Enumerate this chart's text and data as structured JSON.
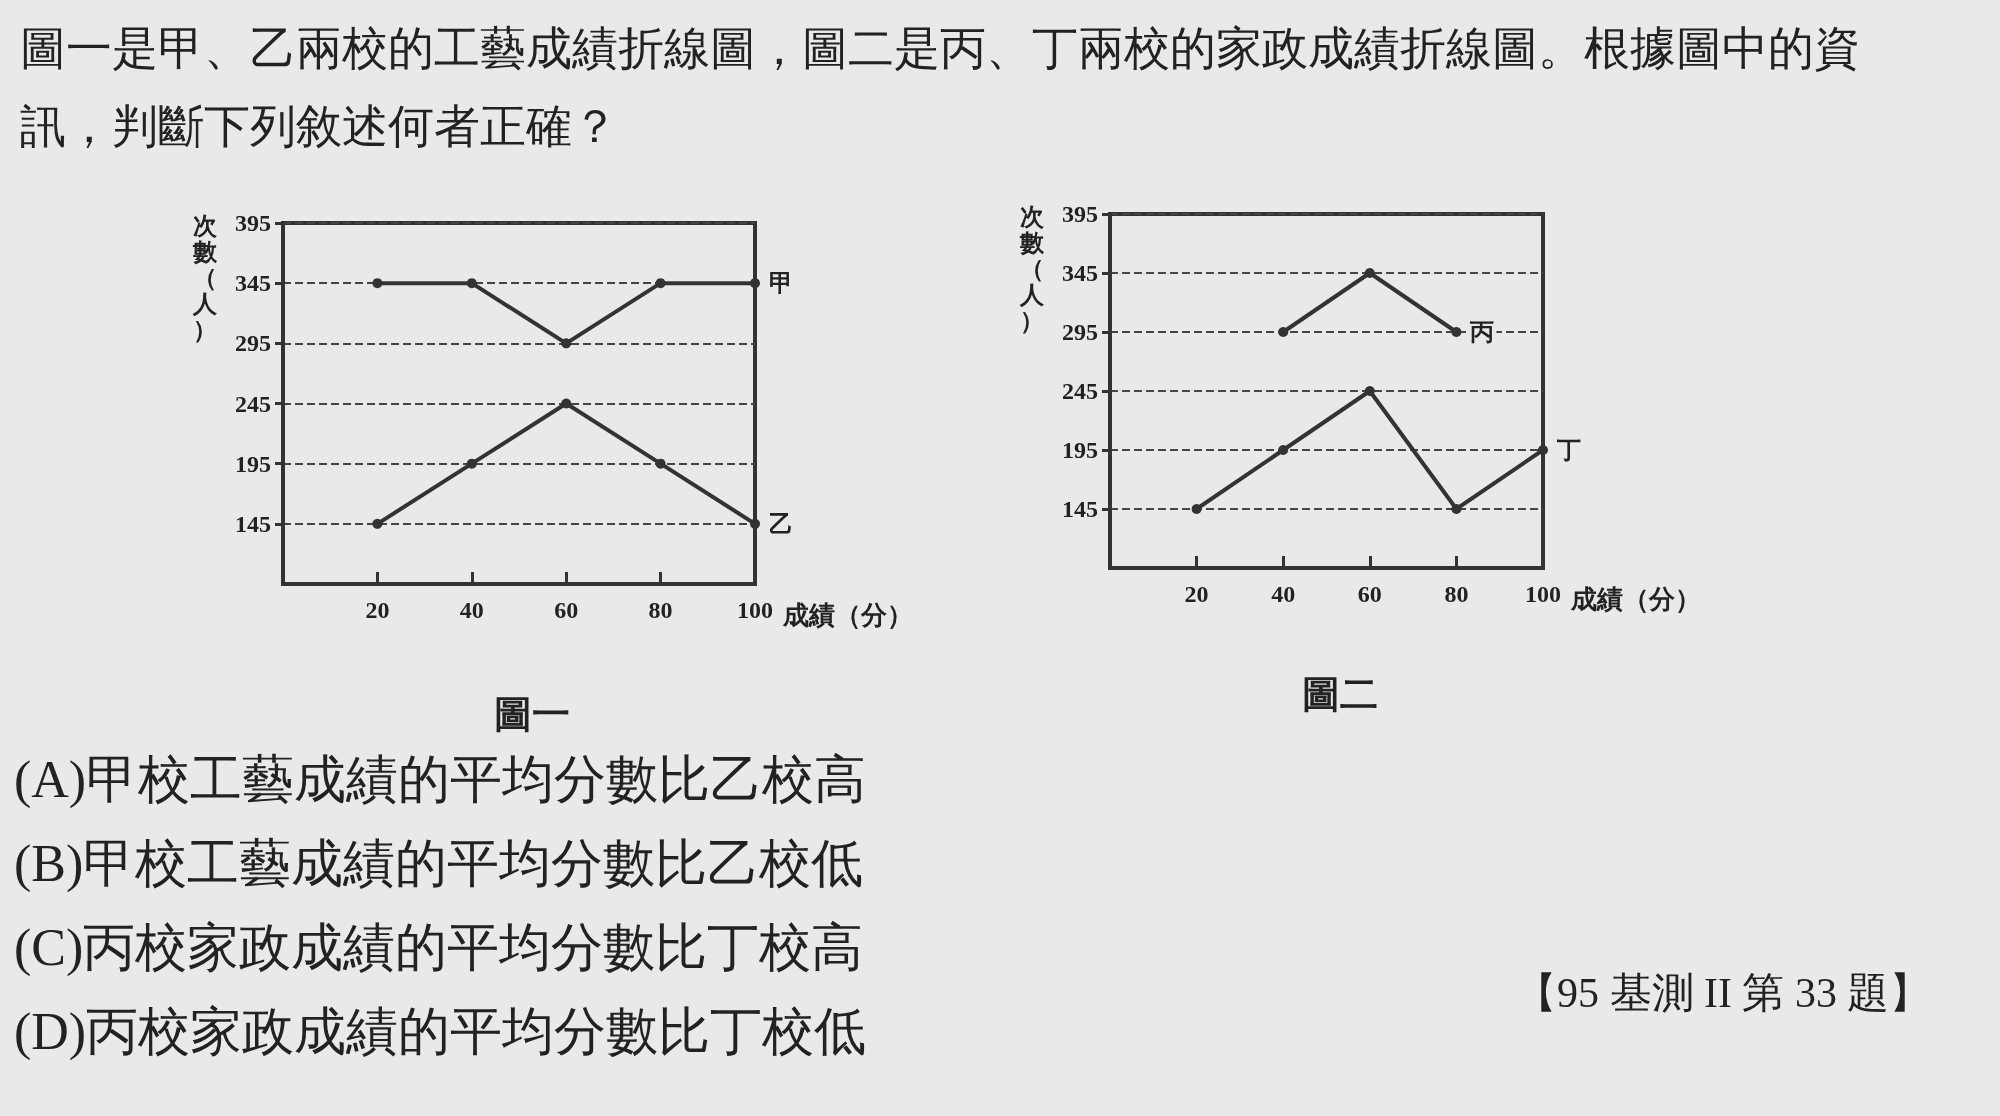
{
  "chart_data": [
    {
      "type": "line",
      "title": "圖一",
      "xlabel": "成績（分）",
      "ylabel": "次數（人）",
      "annotations": [
        "圖一是甲、乙兩校的工藝成績折線圖，圖二是丙、丁兩校的家政成績折線圖。根據圖中的資訊，判斷下列敘述何者正確？",
        "(A)甲校工藝成績的平均分數比乙校高",
        "(B)甲校工藝成績的平均分數比乙校低",
        "(C)丙校家政成績的平均分數比丁校高",
        "(D)丙校家政成績的平均分數比丁校低",
        "【95 基測 II 第 33 題】"
      ],
      "x": [
        20,
        40,
        60,
        80,
        100
      ],
      "series": [
        {
          "name": "甲",
          "color": "#333333",
          "values": [
            345,
            345,
            295,
            345,
            345
          ]
        },
        {
          "name": "乙",
          "color": "#333333",
          "values": [
            145,
            195,
            245,
            195,
            145
          ]
        }
      ],
      "xlim": [
        0,
        100
      ],
      "xticks": [
        20,
        40,
        60,
        80,
        100
      ],
      "ylim": [
        95,
        395
      ],
      "yticks": [
        145,
        195,
        245,
        295,
        345,
        395
      ],
      "grid": "y",
      "marker": "circle",
      "line_style": "solid"
    },
    {
      "type": "line",
      "title": "圖二",
      "xlabel": "成績（分）",
      "ylabel": "次數（人）",
      "x": [
        20,
        40,
        60,
        80,
        100
      ],
      "series": [
        {
          "name": "丙",
          "color": "#333333",
          "values": [
            null,
            295,
            345,
            295,
            null
          ]
        },
        {
          "name": "丁",
          "color": "#333333",
          "values": [
            145,
            195,
            245,
            145,
            195
          ]
        }
      ],
      "xlim": [
        0,
        100
      ],
      "xticks": [
        20,
        40,
        60,
        80,
        100
      ],
      "ylim": [
        95,
        395
      ],
      "yticks": [
        145,
        195,
        245,
        295,
        345,
        395
      ],
      "grid": "y",
      "marker": "circle",
      "line_style": "solid"
    }
  ]
}
